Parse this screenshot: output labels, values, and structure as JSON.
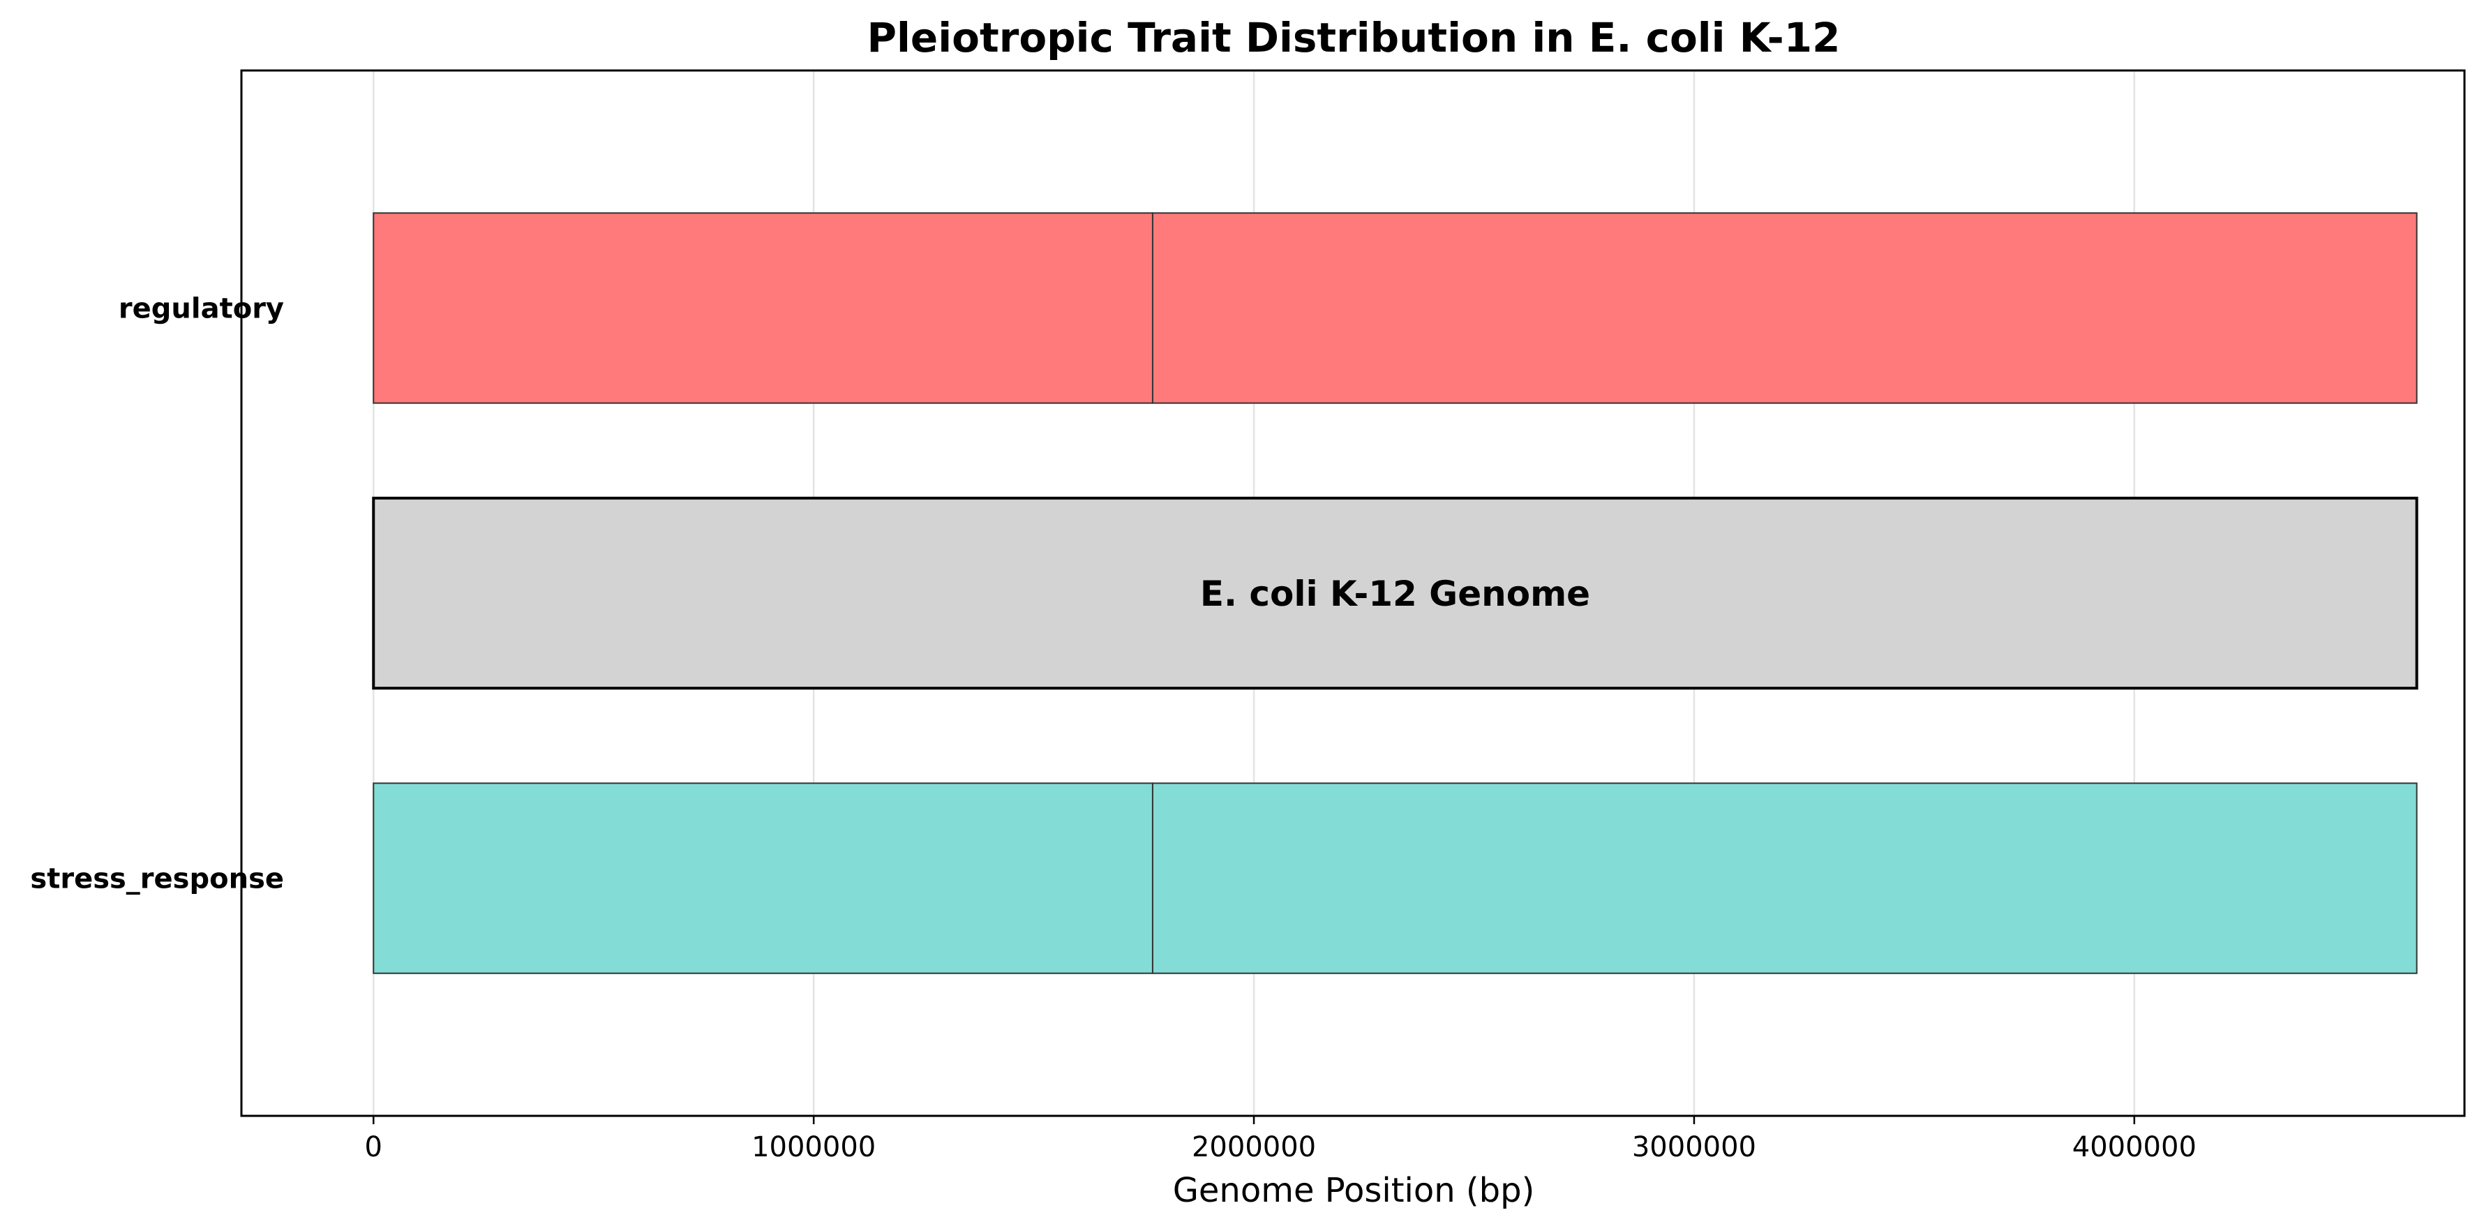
{
  "chart_data": {
    "type": "bar",
    "orientation": "horizontal",
    "title": "Pleiotropic Trait Distribution in E. coli K-12",
    "xlabel": "Genome Position (bp)",
    "ylabel": "",
    "xlim": [
      -300000,
      4750000
    ],
    "xticks": [
      0,
      1000000,
      2000000,
      3000000,
      4000000
    ],
    "xtick_labels": [
      "0",
      "1000000",
      "2000000",
      "3000000",
      "4000000"
    ],
    "grid": {
      "x": true,
      "y": false
    },
    "legend": "none",
    "rows": [
      {
        "category": "regulatory",
        "label": "regulatory",
        "color": "#FF7A7A",
        "segments": [
          {
            "start": 0,
            "end": 1770000
          },
          {
            "start": 1770000,
            "end": 4641652
          }
        ]
      },
      {
        "category": "genome",
        "label": "",
        "color": "#D3D3D3",
        "bar_label": "E. coli K-12 Genome",
        "segments": [
          {
            "start": 0,
            "end": 4641652
          }
        ]
      },
      {
        "category": "stress_response",
        "label": "stress_response",
        "color": "#84DCD6",
        "segments": [
          {
            "start": 0,
            "end": 1770000
          },
          {
            "start": 1770000,
            "end": 4641652
          }
        ]
      }
    ]
  }
}
